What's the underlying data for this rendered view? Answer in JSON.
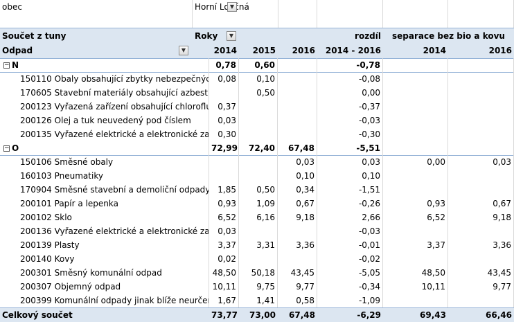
{
  "filter": {
    "field": "obec",
    "value": "Horní Loučná"
  },
  "header": {
    "value_label": "Součet z tuny",
    "column_field": "Roky",
    "rozdil": "rozdíl",
    "separace": "separace bez bio a kovu",
    "row_field": "Odpad",
    "years": [
      "2014",
      "2015",
      "2016"
    ],
    "diff_label": "2014 - 2016",
    "sep_years": [
      "2014",
      "2016"
    ]
  },
  "rows": [
    {
      "type": "group",
      "label": "N",
      "v2014": "0,78",
      "v2015": "0,60",
      "v2016": "",
      "diff": "-0,78",
      "s2014": "",
      "s2016": ""
    },
    {
      "type": "item",
      "label": "150110 Obaly obsahující zbytky nebezpečných látek",
      "v2014": "0,08",
      "v2015": "0,10",
      "v2016": "",
      "diff": "-0,08",
      "s2014": "",
      "s2016": ""
    },
    {
      "type": "item",
      "label": "170605 Stavební materiály obsahující azbest",
      "v2014": "",
      "v2015": "0,50",
      "v2016": "",
      "diff": "0,00",
      "s2014": "",
      "s2016": ""
    },
    {
      "type": "item",
      "label": "200123 Vyřazená zařízení obsahující chlorofluorouhlovodíky",
      "v2014": "0,37",
      "v2015": "",
      "v2016": "",
      "diff": "-0,37",
      "s2014": "",
      "s2016": ""
    },
    {
      "type": "item",
      "label": "200126 Olej a tuk neuvedený pod číslem",
      "v2014": "0,03",
      "v2015": "",
      "v2016": "",
      "diff": "-0,03",
      "s2014": "",
      "s2016": ""
    },
    {
      "type": "item",
      "label": "200135 Vyřazené elektrické a elektronické zařízení",
      "v2014": "0,30",
      "v2015": "",
      "v2016": "",
      "diff": "-0,30",
      "s2014": "",
      "s2016": ""
    },
    {
      "type": "group",
      "label": "O",
      "v2014": "72,99",
      "v2015": "72,40",
      "v2016": "67,48",
      "diff": "-5,51",
      "s2014": "",
      "s2016": ""
    },
    {
      "type": "item",
      "label": "150106 Směsné obaly",
      "v2014": "",
      "v2015": "",
      "v2016": "0,03",
      "diff": "0,03",
      "s2014": "0,00",
      "s2016": "0,03"
    },
    {
      "type": "item",
      "label": "160103 Pneumatiky",
      "v2014": "",
      "v2015": "",
      "v2016": "0,10",
      "diff": "0,10",
      "s2014": "",
      "s2016": ""
    },
    {
      "type": "item",
      "label": "170904 Směsné stavební a demoliční odpady",
      "v2014": "1,85",
      "v2015": "0,50",
      "v2016": "0,34",
      "diff": "-1,51",
      "s2014": "",
      "s2016": ""
    },
    {
      "type": "item",
      "label": "200101 Papír a lepenka",
      "v2014": "0,93",
      "v2015": "1,09",
      "v2016": "0,67",
      "diff": "-0,26",
      "s2014": "0,93",
      "s2016": "0,67"
    },
    {
      "type": "item",
      "label": "200102 Sklo",
      "v2014": "6,52",
      "v2015": "6,16",
      "v2016": "9,18",
      "diff": "2,66",
      "s2014": "6,52",
      "s2016": "9,18"
    },
    {
      "type": "item",
      "label": "200136 Vyřazené elektrické a elektronické zařízení",
      "v2014": "0,03",
      "v2015": "",
      "v2016": "",
      "diff": "-0,03",
      "s2014": "",
      "s2016": ""
    },
    {
      "type": "item",
      "label": "200139 Plasty",
      "v2014": "3,37",
      "v2015": "3,31",
      "v2016": "3,36",
      "diff": "-0,01",
      "s2014": "3,37",
      "s2016": "3,36"
    },
    {
      "type": "item",
      "label": "200140 Kovy",
      "v2014": "0,02",
      "v2015": "",
      "v2016": "",
      "diff": "-0,02",
      "s2014": "",
      "s2016": ""
    },
    {
      "type": "item",
      "label": "200301 Směsný komunální odpad",
      "v2014": "48,50",
      "v2015": "50,18",
      "v2016": "43,45",
      "diff": "-5,05",
      "s2014": "48,50",
      "s2016": "43,45"
    },
    {
      "type": "item",
      "label": "200307 Objemný odpad",
      "v2014": "10,11",
      "v2015": "9,75",
      "v2016": "9,77",
      "diff": "-0,34",
      "s2014": "10,11",
      "s2016": "9,77"
    },
    {
      "type": "item",
      "label": "200399 Komunální odpady jinak blíže neurčené",
      "v2014": "1,67",
      "v2015": "1,41",
      "v2016": "0,58",
      "diff": "-1,09",
      "s2014": "",
      "s2016": ""
    }
  ],
  "total": {
    "label": "Celkový součet",
    "v2014": "73,77",
    "v2015": "73,00",
    "v2016": "67,48",
    "diff": "-6,29",
    "s2014": "69,43",
    "s2016": "66,46"
  },
  "icons": {
    "dropdown": "dropdown-arrow-icon",
    "collapse": "collapse-minus-icon"
  },
  "colors": {
    "header_fill": "#dce6f1",
    "header_line": "#95b3d7"
  }
}
